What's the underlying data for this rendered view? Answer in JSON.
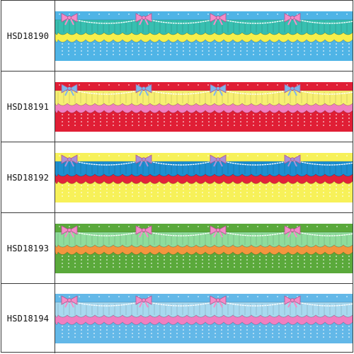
{
  "products": [
    {
      "code": "HSD18190",
      "colors": {
        "background": "#4fb4e6",
        "band1": "#37bfb0",
        "band2": "#f6ef4b",
        "bow": "#f48cc8",
        "trim": "#ffffff"
      }
    },
    {
      "code": "HSD18191",
      "colors": {
        "background": "#e01e35",
        "band1": "#f7ef72",
        "band2": "#f07fc0",
        "bow": "#7fb6ea",
        "trim": "#ffffff"
      }
    },
    {
      "code": "HSD18192",
      "colors": {
        "background": "#f7f159",
        "band1": "#1e8fd0",
        "band2": "#e2233b",
        "bow": "#a891d8",
        "trim": "#ffffff"
      }
    },
    {
      "code": "HSD18193",
      "colors": {
        "background": "#5aa93b",
        "band1": "#8fdc9c",
        "band2": "#f3963e",
        "bow": "#f48cc8",
        "trim": "#ffffff"
      }
    },
    {
      "code": "HSD18194",
      "colors": {
        "background": "#63b8e8",
        "band1": "#a8d9ef",
        "band2": "#f07fc0",
        "bow": "#f48cc8",
        "trim": "#ffffff"
      }
    }
  ]
}
